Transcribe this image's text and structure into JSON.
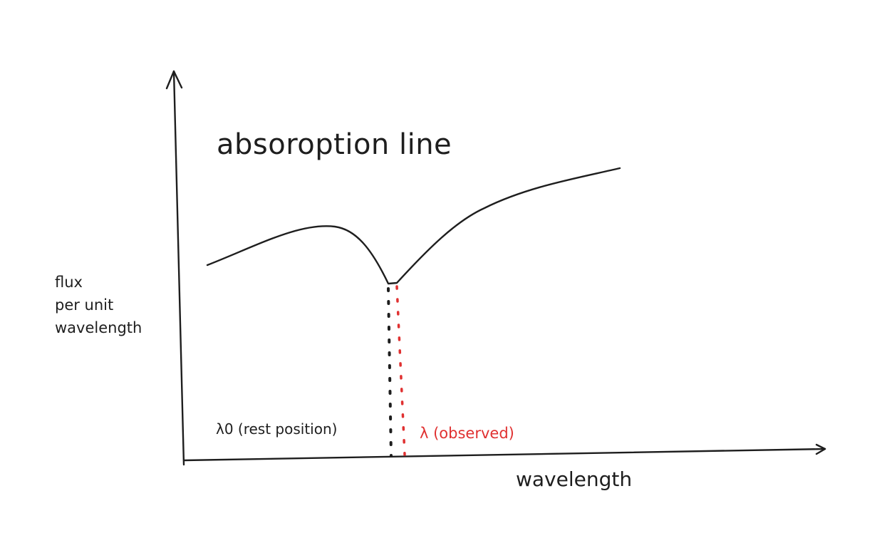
{
  "diagram": {
    "title": "absoroption line",
    "y_axis_label": "flux\nper unit\nwavelength",
    "x_axis_label": "wavelength",
    "rest_marker_label": "λ0 (rest position)",
    "observed_marker_label": "λ (observed)",
    "colors": {
      "ink": "#1e1e1e",
      "observed": "#e03131",
      "background": "#ffffff"
    }
  }
}
